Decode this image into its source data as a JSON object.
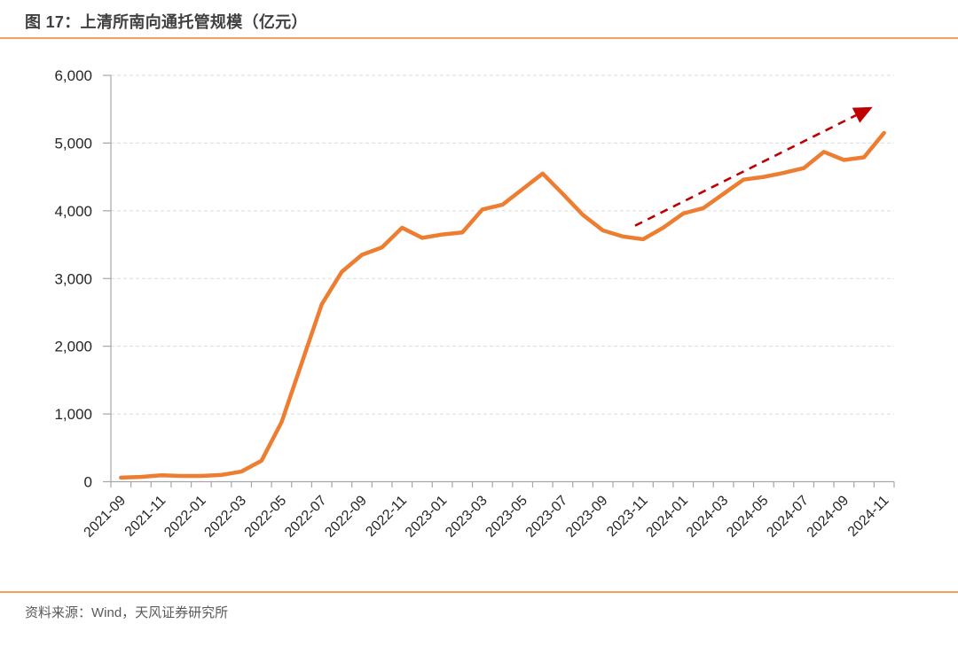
{
  "figure": {
    "title": "图 17：上清所南向通托管规模（亿元）",
    "source": "资料来源：Wind，天风证券研究所"
  },
  "colors": {
    "series_line": "#ED7D31",
    "rule": "#F2A15C",
    "trend": "#C00000",
    "grid": "#DBDBDB",
    "axis": "#A6A6A6",
    "tick_label": "#262626",
    "title_text": "#404040",
    "source_text": "#595959",
    "background": "#FFFFFF"
  },
  "chart_data": {
    "type": "line",
    "title": "上清所南向通托管规模（亿元）",
    "xlabel": "",
    "ylabel": "",
    "categories": [
      "2021-09",
      "2021-10",
      "2021-11",
      "2021-12",
      "2022-01",
      "2022-02",
      "2022-03",
      "2022-04",
      "2022-05",
      "2022-06",
      "2022-07",
      "2022-08",
      "2022-09",
      "2022-10",
      "2022-11",
      "2022-12",
      "2023-01",
      "2023-02",
      "2023-03",
      "2023-04",
      "2023-05",
      "2023-06",
      "2023-07",
      "2023-08",
      "2023-09",
      "2023-10",
      "2023-11",
      "2023-12",
      "2024-01",
      "2024-02",
      "2024-03",
      "2024-04",
      "2024-05",
      "2024-06",
      "2024-07",
      "2024-08",
      "2024-09",
      "2024-10",
      "2024-11"
    ],
    "series": [
      {
        "name": "上清所南向通托管规模",
        "values": [
          60,
          70,
          95,
          85,
          85,
          100,
          150,
          310,
          880,
          1750,
          2620,
          3100,
          3350,
          3460,
          3750,
          3600,
          3650,
          3680,
          4020,
          4090,
          4320,
          4550,
          4250,
          3940,
          3710,
          3620,
          3580,
          3750,
          3960,
          4040,
          4250,
          4460,
          4500,
          4560,
          4630,
          4870,
          4750,
          4790,
          5150
        ]
      }
    ],
    "x_tick_label_every": 2,
    "x_tick_labels_shown": [
      "2021-09",
      "2021-11",
      "2022-01",
      "2022-03",
      "2022-05",
      "2022-07",
      "2022-09",
      "2022-11",
      "2023-01",
      "2023-03",
      "2023-05",
      "2023-07",
      "2023-09",
      "2023-11",
      "2024-01",
      "2024-03",
      "2024-05",
      "2024-07",
      "2024-09",
      "2024-11"
    ],
    "y_ticks": [
      0,
      1000,
      2000,
      3000,
      4000,
      5000,
      6000
    ],
    "y_tick_labels": [
      "0",
      "1,000",
      "2,000",
      "3,000",
      "4,000",
      "5,000",
      "6,000"
    ],
    "ylim": [
      0,
      6000
    ],
    "grid": "horizontal-dashed",
    "legend": "none",
    "annotation": {
      "type": "dashed-arrow-trend",
      "from": {
        "category_index": 25.6,
        "value": 3780
      },
      "to": {
        "category_index": 36.6,
        "value": 5410
      }
    }
  }
}
